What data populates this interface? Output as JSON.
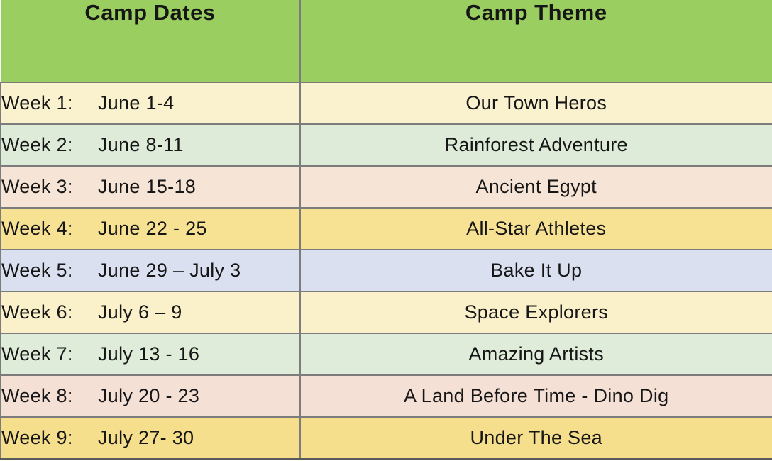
{
  "table": {
    "headers": {
      "dates": "Camp Dates",
      "theme": "Camp Theme"
    },
    "rows": [
      {
        "week": "Week 1:",
        "dates": "June 1-4",
        "theme": "Our Town Heros",
        "bg": "#FAF1CF"
      },
      {
        "week": "Week 2:",
        "dates": "June 8-11",
        "theme": "Rainforest Adventure",
        "bg": "#DEEBD9"
      },
      {
        "week": "Week 3:",
        "dates": "June 15-18",
        "theme": "Ancient Egypt",
        "bg": "#F6E4D6"
      },
      {
        "week": "Week 4:",
        "dates": "June 22 - 25",
        "theme": "All-Star Athletes",
        "bg": "#F7E192"
      },
      {
        "week": "Week 5:",
        "dates": "June 29 – July 3",
        "theme": "Bake It Up",
        "bg": "#DBE0F1"
      },
      {
        "week": "Week 6:",
        "dates": "July 6 – 9",
        "theme": "Space Explorers",
        "bg": "#FAF1CB"
      },
      {
        "week": "Week 7:",
        "dates": "July 13 - 16",
        "theme": "Amazing Artists",
        "bg": "#DFECDA"
      },
      {
        "week": "Week 8:",
        "dates": "July 20 - 23",
        "theme": "A Land Before Time - Dino Dig",
        "bg": "#F5E0D6"
      },
      {
        "week": "Week 9:",
        "dates": "July 27- 30",
        "theme": "Under The Sea",
        "bg": "#F6DF8C"
      }
    ],
    "colors": {
      "header_bg": "#9BCE60",
      "grid": "#7C7C7C",
      "text": "#161616"
    }
  }
}
